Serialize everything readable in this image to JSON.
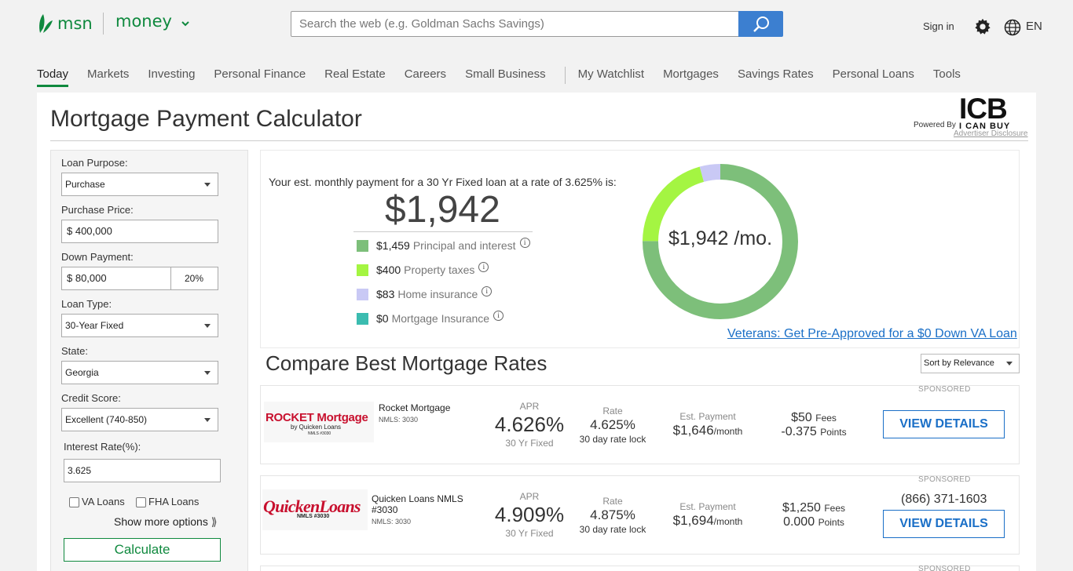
{
  "header": {
    "brand": "msn",
    "section": "money",
    "search_placeholder": "Search the web (e.g. Goldman Sachs Savings)",
    "sign_in": "Sign in",
    "language": "EN"
  },
  "nav": {
    "items_left": [
      "Today",
      "Markets",
      "Investing",
      "Personal Finance",
      "Real Estate",
      "Careers",
      "Small Business"
    ],
    "items_right": [
      "My Watchlist",
      "Mortgages",
      "Savings Rates",
      "Personal Loans",
      "Tools"
    ],
    "active": "Today"
  },
  "page": {
    "title": "Mortgage Payment Calculator",
    "powered_by": "Powered By",
    "icb_logo_big": "ICB",
    "icb_logo_small": "I CAN BUY",
    "advertiser_disclosure": "Advertiser Disclosure"
  },
  "form": {
    "loan_purpose_label": "Loan Purpose:",
    "loan_purpose_value": "Purchase",
    "purchase_price_label": "Purchase Price:",
    "purchase_price_value": "$ 400,000",
    "down_payment_label": "Down Payment:",
    "down_payment_value": "$ 80,000",
    "down_payment_pct": "20%",
    "loan_type_label": "Loan Type:",
    "loan_type_value": "30-Year Fixed",
    "state_label": "State:",
    "state_value": "Georgia",
    "credit_label": "Credit Score:",
    "credit_value": "Excellent (740-850)",
    "interest_label": "Interest Rate(%):",
    "interest_value": "3.625",
    "va_label": "VA Loans",
    "fha_label": "FHA Loans",
    "show_more": "Show more options",
    "calculate": "Calculate"
  },
  "summary": {
    "est_text": "Your est. monthly payment for a 30 Yr Fixed loan at a rate of 3.625% is:",
    "payment": "$1,942",
    "donut_label": "$1,942 /mo.",
    "breakdown": [
      {
        "amount": "$1,459",
        "label": "Principal and interest",
        "color": "#7dbf7a",
        "value": 1459
      },
      {
        "amount": "$400",
        "label": "Property taxes",
        "color": "#a4f542",
        "value": 400
      },
      {
        "amount": "$83",
        "label": "Home insurance",
        "color": "#c9c9f5",
        "value": 83
      },
      {
        "amount": "$0",
        "label": "Mortgage Insurance",
        "color": "#3bbcb0",
        "value": 0
      }
    ],
    "va_link": "Veterans: Get Pre-Approved for a $0 Down VA Loan"
  },
  "compare": {
    "title": "Compare Best Mortgage Rates",
    "sort": "Sort by Relevance",
    "lenders": [
      {
        "sponsored": "SPONSORED",
        "logo_main": "ROCKET Mortgage",
        "logo_sub": "by Quicken Loans",
        "logo_nmls": "NMLS #3030",
        "name": "Rocket Mortgage",
        "nmls": "NMLS: 3030",
        "apr_label": "APR",
        "apr": "4.626%",
        "apr_term": "30 Yr Fixed",
        "rate_label": "Rate",
        "rate": "4.625%",
        "lock": "30 day rate lock",
        "payment_label": "Est. Payment",
        "payment": "$1,646",
        "per_month": "/month",
        "fees": "$50",
        "fees_label": "Fees",
        "points": "-0.375",
        "points_label": "Points",
        "phone": "",
        "button": "VIEW DETAILS"
      },
      {
        "sponsored": "SPONSORED",
        "logo_main": "QuickenLoans",
        "logo_sub": "NMLS #3030",
        "logo_nmls": "",
        "name": "Quicken Loans NMLS #3030",
        "nmls": "NMLS: 3030",
        "apr_label": "APR",
        "apr": "4.909%",
        "apr_term": "30 Yr Fixed",
        "rate_label": "Rate",
        "rate": "4.875%",
        "lock": "30 day rate lock",
        "payment_label": "Est. Payment",
        "payment": "$1,694",
        "per_month": "/month",
        "fees": "$1,250",
        "fees_label": "Fees",
        "points": "0.000",
        "points_label": "Points",
        "phone": "(866) 371-1603",
        "button": "VIEW DETAILS"
      }
    ],
    "third_sponsored": "SPONSORED"
  }
}
